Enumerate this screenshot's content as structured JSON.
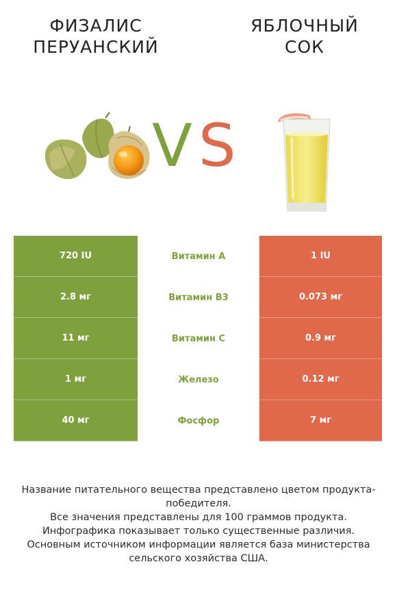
{
  "header": {
    "left_title": "ФИЗАЛИС ПЕРУАНСКИЙ",
    "right_title": "ЯБЛОЧНЫЙ СОК",
    "vs_v": "V",
    "vs_s": "S"
  },
  "colors": {
    "left": "#7ea13e",
    "right": "#e0684b",
    "left_label": "#7ea13e",
    "right_label": "#e0684b"
  },
  "rows": [
    {
      "left": "720 IU",
      "nutrient": "Витамин A",
      "right": "1 IU",
      "winner": "left"
    },
    {
      "left": "2.8 мг",
      "nutrient": "Витамин B3",
      "right": "0.073 мг",
      "winner": "left"
    },
    {
      "left": "11 мг",
      "nutrient": "Витамин C",
      "right": "0.9 мг",
      "winner": "left"
    },
    {
      "left": "1 мг",
      "nutrient": "Железо",
      "right": "0.12 мг",
      "winner": "left"
    },
    {
      "left": "40 мг",
      "nutrient": "Фосфор",
      "right": "7 мг",
      "winner": "left"
    }
  ],
  "footer": {
    "line1": "Название питательного вещества представлено цветом продукта-победителя.",
    "line2_pre": "Все значения представлены для ",
    "line2_bold": "100 граммов",
    "line2_post": " продукта.",
    "line3": "Инфографика показывает только существенные различия.",
    "line4": "Основным источником информации является база министерства сельского хозяйства США."
  }
}
